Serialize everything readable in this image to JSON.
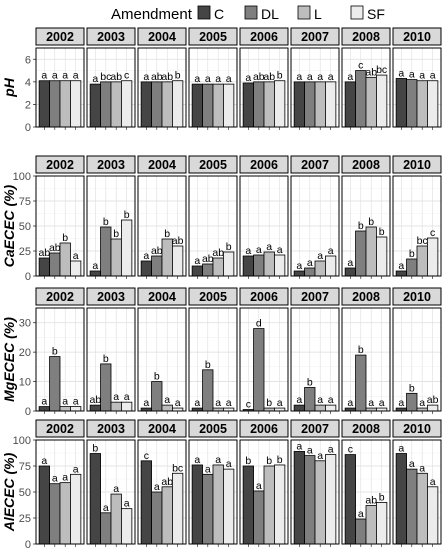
{
  "colors": {
    "C": "#454545",
    "DL": "#7f7f7f",
    "L": "#bdbdbd",
    "SF": "#ececec",
    "strip": "#d9d9d9",
    "grid_major": "#dedede",
    "grid_minor": "#f1f1f1"
  },
  "legend": {
    "title": "Amendment",
    "entries": [
      "C",
      "DL",
      "L",
      "SF"
    ]
  },
  "chart_data": {
    "type": "bar",
    "years": [
      "2002",
      "2003",
      "2004",
      "2005",
      "2006",
      "2007",
      "2008",
      "2010"
    ],
    "categories": [
      "C",
      "DL",
      "L",
      "SF"
    ],
    "grid": true,
    "legend_position": "top",
    "panels": [
      {
        "ylabel": "pH",
        "ylim": [
          0,
          7
        ],
        "yticks": [
          "0",
          "2",
          "4",
          "6"
        ],
        "ytick_values": [
          0,
          2,
          4,
          6
        ],
        "values": [
          [
            4.1,
            4.1,
            4.1,
            4.1
          ],
          [
            3.8,
            4.0,
            4.0,
            4.1
          ],
          [
            4.0,
            4.0,
            4.0,
            4.1
          ],
          [
            3.8,
            3.8,
            3.8,
            3.8
          ],
          [
            3.9,
            4.0,
            4.0,
            4.1
          ],
          [
            4.0,
            4.0,
            4.0,
            4.0
          ],
          [
            4.0,
            5.0,
            4.4,
            4.6
          ],
          [
            4.3,
            4.2,
            4.1,
            4.1
          ]
        ],
        "letters": [
          [
            "a",
            "a",
            "a",
            "a"
          ],
          [
            "a",
            "bc",
            "ab",
            "c"
          ],
          [
            "a",
            "ab",
            "ab",
            "b"
          ],
          [
            "a",
            "a",
            "a",
            "a"
          ],
          [
            "a",
            "ab",
            "ab",
            "b"
          ],
          [
            "a",
            "a",
            "a",
            "a"
          ],
          [
            "a",
            "c",
            "ab",
            "bc"
          ],
          [
            "a",
            "a",
            "a",
            "a"
          ]
        ]
      },
      {
        "ylabel": "CaECEC (%)",
        "ylim": [
          0,
          100
        ],
        "yticks": [
          "0",
          "25",
          "50",
          "75",
          "100"
        ],
        "ytick_values": [
          0,
          25,
          50,
          75,
          100
        ],
        "values": [
          [
            18,
            23,
            33,
            15
          ],
          [
            5,
            49,
            37,
            56
          ],
          [
            15,
            20,
            37,
            30
          ],
          [
            10,
            12,
            18,
            24
          ],
          [
            20,
            21,
            24,
            21
          ],
          [
            5,
            8,
            15,
            20
          ],
          [
            8,
            45,
            49,
            39
          ],
          [
            5,
            17,
            30,
            38
          ]
        ],
        "letters": [
          [
            "ab",
            "ab",
            "b",
            "a"
          ],
          [
            "a",
            "b",
            "b",
            "b"
          ],
          [
            "a",
            "ab",
            "b",
            "ab"
          ],
          [
            "a",
            "ab",
            "ab",
            "b"
          ],
          [
            "a",
            "a",
            "a",
            "a"
          ],
          [
            "a",
            "a",
            "a",
            "a"
          ],
          [
            "a",
            "b",
            "b",
            "b"
          ],
          [
            "a",
            "b",
            "bc",
            "c"
          ]
        ]
      },
      {
        "ylabel": "MgECEC (%)",
        "ylim": [
          0,
          35
        ],
        "yticks": [
          "0",
          "10",
          "20",
          "30"
        ],
        "ytick_values": [
          0,
          10,
          20,
          30
        ],
        "values": [
          [
            1.5,
            18.5,
            1.5,
            1.5
          ],
          [
            2,
            16,
            3,
            3
          ],
          [
            1,
            10,
            2,
            1
          ],
          [
            1,
            14,
            1,
            1
          ],
          [
            0.5,
            28,
            1,
            1
          ],
          [
            2,
            8,
            2,
            2
          ],
          [
            1,
            19,
            1,
            1
          ],
          [
            1,
            6,
            1,
            2
          ]
        ],
        "letters": [
          [
            "a",
            "b",
            "a",
            "a"
          ],
          [
            "ab",
            "b",
            "a",
            "a"
          ],
          [
            "a",
            "b",
            "a",
            "a"
          ],
          [
            "a",
            "b",
            "a",
            "a"
          ],
          [
            "c",
            "d",
            "b",
            "a"
          ],
          [
            "a",
            "b",
            "a",
            "a"
          ],
          [
            "a",
            "b",
            "a",
            "a"
          ],
          [
            "a",
            "b",
            "a",
            "ab"
          ]
        ]
      },
      {
        "ylabel": "AlECEC (%)",
        "ylim": [
          0,
          100
        ],
        "yticks": [
          "0",
          "25",
          "50",
          "75",
          "100"
        ],
        "ytick_values": [
          0,
          25,
          50,
          75,
          100
        ],
        "values": [
          [
            75,
            58,
            59,
            67
          ],
          [
            87,
            30,
            48,
            34
          ],
          [
            80,
            50,
            55,
            68
          ],
          [
            76,
            67,
            76,
            72
          ],
          [
            75,
            51,
            75,
            76
          ],
          [
            89,
            85,
            80,
            86
          ],
          [
            86,
            24,
            37,
            40
          ],
          [
            87,
            72,
            68,
            55
          ]
        ],
        "letters": [
          [
            "a",
            "a",
            "a",
            "a"
          ],
          [
            "b",
            "a",
            "a",
            "a"
          ],
          [
            "c",
            "a",
            "ab",
            "bc"
          ],
          [
            "a",
            "a",
            "a",
            "a"
          ],
          [
            "b",
            "a",
            "b",
            "b"
          ],
          [
            "a",
            "a",
            "a",
            "a"
          ],
          [
            "c",
            "a",
            "ab",
            "b"
          ],
          [
            "a",
            "a",
            "a",
            "a"
          ]
        ]
      }
    ]
  }
}
